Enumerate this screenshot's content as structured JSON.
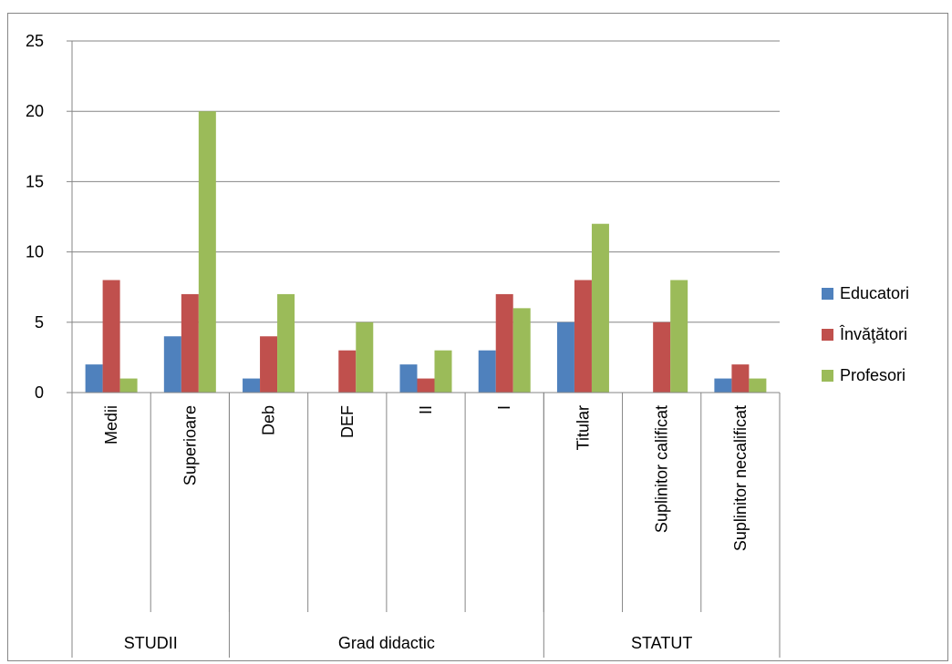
{
  "chart_data": {
    "type": "bar",
    "groups": [
      {
        "label": "STUDII",
        "categories": [
          "Medii",
          "Superioare"
        ]
      },
      {
        "label": "Grad didactic",
        "categories": [
          "Deb",
          "DEF",
          "II",
          "I"
        ]
      },
      {
        "label": "STATUT",
        "categories": [
          "Titular",
          "Suplinitor calificat",
          "Suplinitor necalificat"
        ]
      }
    ],
    "categories": [
      "Medii",
      "Superioare",
      "Deb",
      "DEF",
      "II",
      "I",
      "Titular",
      "Suplinitor calificat",
      "Suplinitor necalificat"
    ],
    "series": [
      {
        "name": "Educatori",
        "color": "#4F81BD",
        "values": [
          2,
          4,
          1,
          0,
          2,
          3,
          5,
          0,
          1
        ]
      },
      {
        "name": "Învăţători",
        "color": "#C0504D",
        "values": [
          8,
          7,
          4,
          3,
          1,
          7,
          8,
          5,
          2
        ]
      },
      {
        "name": "Profesori",
        "color": "#9BBB59",
        "values": [
          1,
          20,
          7,
          5,
          3,
          6,
          12,
          8,
          1
        ]
      }
    ],
    "ylim": [
      0,
      25
    ],
    "yticks": [
      0,
      5,
      10,
      15,
      20,
      25
    ],
    "grid": true,
    "legend_position": "right"
  }
}
